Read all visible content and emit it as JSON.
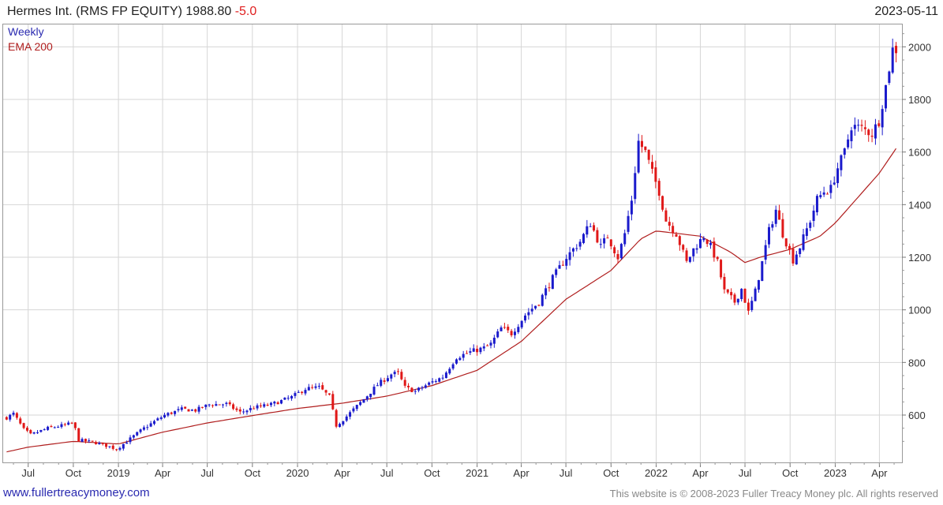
{
  "header": {
    "title": "Hermes Int. (RMS FP EQUITY) 1988.80",
    "change": "-5.0",
    "date": "2023-05-11"
  },
  "footer": {
    "link": "www.fullertreacymoney.com",
    "copyright": "This website is © 2008-2023 Fuller Treacy Money plc. All rights reserved"
  },
  "colors": {
    "up": "#1a1acc",
    "down": "#e01818",
    "ema": "#b01e1e",
    "grid": "#d6d6d6"
  },
  "chart_data": {
    "type": "candlestick",
    "legend": [
      "Weekly",
      "EMA 200"
    ],
    "legend_placement": "top-left",
    "grid": true,
    "y_axis": {
      "position": "right",
      "ticks": [
        600,
        800,
        1000,
        1200,
        1400,
        1600,
        1800,
        2000
      ],
      "range": [
        420,
        2085
      ]
    },
    "x_axis": {
      "range": [
        "2018-05-11",
        "2023-05-17"
      ],
      "ticks": [
        {
          "label": "Jul",
          "date": "2018-07-01"
        },
        {
          "label": "Oct",
          "date": "2018-10-01"
        },
        {
          "label": "2019",
          "date": "2019-01-01"
        },
        {
          "label": "Apr",
          "date": "2019-04-01"
        },
        {
          "label": "Jul",
          "date": "2019-07-01"
        },
        {
          "label": "Oct",
          "date": "2019-10-01"
        },
        {
          "label": "2020",
          "date": "2020-01-01"
        },
        {
          "label": "Apr",
          "date": "2020-04-01"
        },
        {
          "label": "Jul",
          "date": "2020-07-01"
        },
        {
          "label": "Oct",
          "date": "2020-10-01"
        },
        {
          "label": "2021",
          "date": "2021-01-01"
        },
        {
          "label": "Apr",
          "date": "2021-04-01"
        },
        {
          "label": "Jul",
          "date": "2021-07-01"
        },
        {
          "label": "Oct",
          "date": "2021-10-01"
        },
        {
          "label": "2022",
          "date": "2022-01-01"
        },
        {
          "label": "Apr",
          "date": "2022-04-01"
        },
        {
          "label": "Jul",
          "date": "2022-07-01"
        },
        {
          "label": "Oct",
          "date": "2022-10-01"
        },
        {
          "label": "2023",
          "date": "2023-01-01"
        },
        {
          "label": "Apr",
          "date": "2023-04-01"
        }
      ]
    },
    "price_path": [
      [
        "2018-05-18",
        590
      ],
      [
        "2018-06-01",
        605
      ],
      [
        "2018-06-22",
        545
      ],
      [
        "2018-07-06",
        525
      ],
      [
        "2018-08-10",
        550
      ],
      [
        "2018-09-14",
        562
      ],
      [
        "2018-10-01",
        570
      ],
      [
        "2018-10-12",
        505
      ],
      [
        "2018-11-15",
        495
      ],
      [
        "2018-12-14",
        480
      ],
      [
        "2018-12-28",
        470
      ],
      [
        "2019-01-18",
        500
      ],
      [
        "2019-02-22",
        550
      ],
      [
        "2019-04-05",
        600
      ],
      [
        "2019-05-10",
        622
      ],
      [
        "2019-06-07",
        618
      ],
      [
        "2019-07-05",
        640
      ],
      [
        "2019-08-09",
        642
      ],
      [
        "2019-09-06",
        610
      ],
      [
        "2019-10-04",
        628
      ],
      [
        "2019-11-08",
        640
      ],
      [
        "2019-12-20",
        668
      ],
      [
        "2020-01-17",
        700
      ],
      [
        "2020-02-14",
        705
      ],
      [
        "2020-03-06",
        670
      ],
      [
        "2020-03-20",
        560
      ],
      [
        "2020-04-10",
        595
      ],
      [
        "2020-05-15",
        660
      ],
      [
        "2020-06-12",
        715
      ],
      [
        "2020-07-10",
        755
      ],
      [
        "2020-07-24",
        760
      ],
      [
        "2020-08-07",
        705
      ],
      [
        "2020-08-28",
        690
      ],
      [
        "2020-09-25",
        720
      ],
      [
        "2020-10-23",
        745
      ],
      [
        "2020-11-20",
        820
      ],
      [
        "2020-12-18",
        840
      ],
      [
        "2021-01-15",
        855
      ],
      [
        "2021-01-29",
        870
      ],
      [
        "2021-02-19",
        930
      ],
      [
        "2021-03-12",
        910
      ],
      [
        "2021-04-09",
        980
      ],
      [
        "2021-05-07",
        1030
      ],
      [
        "2021-06-04",
        1120
      ],
      [
        "2021-07-02",
        1200
      ],
      [
        "2021-07-30",
        1260
      ],
      [
        "2021-08-20",
        1330
      ],
      [
        "2021-09-10",
        1240
      ],
      [
        "2021-09-24",
        1280
      ],
      [
        "2021-10-15",
        1200
      ],
      [
        "2021-10-29",
        1290
      ],
      [
        "2021-11-12",
        1420
      ],
      [
        "2021-11-26",
        1640
      ],
      [
        "2021-12-10",
        1600
      ],
      [
        "2021-12-24",
        1520
      ],
      [
        "2022-01-07",
        1450
      ],
      [
        "2022-01-21",
        1340
      ],
      [
        "2022-02-11",
        1290
      ],
      [
        "2022-03-04",
        1180
      ],
      [
        "2022-03-18",
        1230
      ],
      [
        "2022-04-08",
        1280
      ],
      [
        "2022-04-22",
        1240
      ],
      [
        "2022-05-06",
        1180
      ],
      [
        "2022-05-20",
        1070
      ],
      [
        "2022-06-10",
        1030
      ],
      [
        "2022-06-24",
        1080
      ],
      [
        "2022-07-08",
        990
      ],
      [
        "2022-07-22",
        1070
      ],
      [
        "2022-08-05",
        1180
      ],
      [
        "2022-08-19",
        1300
      ],
      [
        "2022-09-02",
        1380
      ],
      [
        "2022-09-16",
        1290
      ],
      [
        "2022-10-07",
        1190
      ],
      [
        "2022-10-21",
        1240
      ],
      [
        "2022-11-11",
        1340
      ],
      [
        "2022-11-25",
        1420
      ],
      [
        "2022-12-09",
        1450
      ],
      [
        "2022-12-23",
        1460
      ],
      [
        "2023-01-06",
        1540
      ],
      [
        "2023-01-20",
        1600
      ],
      [
        "2023-02-03",
        1700
      ],
      [
        "2023-02-24",
        1690
      ],
      [
        "2023-03-17",
        1670
      ],
      [
        "2023-03-31",
        1720
      ],
      [
        "2023-04-14",
        1850
      ],
      [
        "2023-04-28",
        1990
      ],
      [
        "2023-05-11",
        1988.8
      ]
    ],
    "ema_path": [
      [
        "2018-05-18",
        460
      ],
      [
        "2018-07-01",
        478
      ],
      [
        "2018-10-01",
        500
      ],
      [
        "2019-01-01",
        490
      ],
      [
        "2019-04-01",
        535
      ],
      [
        "2019-07-01",
        570
      ],
      [
        "2019-10-01",
        598
      ],
      [
        "2020-01-01",
        625
      ],
      [
        "2020-04-01",
        645
      ],
      [
        "2020-07-01",
        672
      ],
      [
        "2020-10-01",
        712
      ],
      [
        "2021-01-01",
        770
      ],
      [
        "2021-04-01",
        880
      ],
      [
        "2021-07-01",
        1040
      ],
      [
        "2021-10-01",
        1150
      ],
      [
        "2021-12-01",
        1270
      ],
      [
        "2022-01-01",
        1300
      ],
      [
        "2022-04-01",
        1280
      ],
      [
        "2022-06-01",
        1220
      ],
      [
        "2022-07-01",
        1180
      ],
      [
        "2022-08-01",
        1200
      ],
      [
        "2022-10-01",
        1230
      ],
      [
        "2022-12-01",
        1280
      ],
      [
        "2023-01-01",
        1330
      ],
      [
        "2023-04-01",
        1520
      ],
      [
        "2023-05-11",
        1630
      ]
    ]
  }
}
